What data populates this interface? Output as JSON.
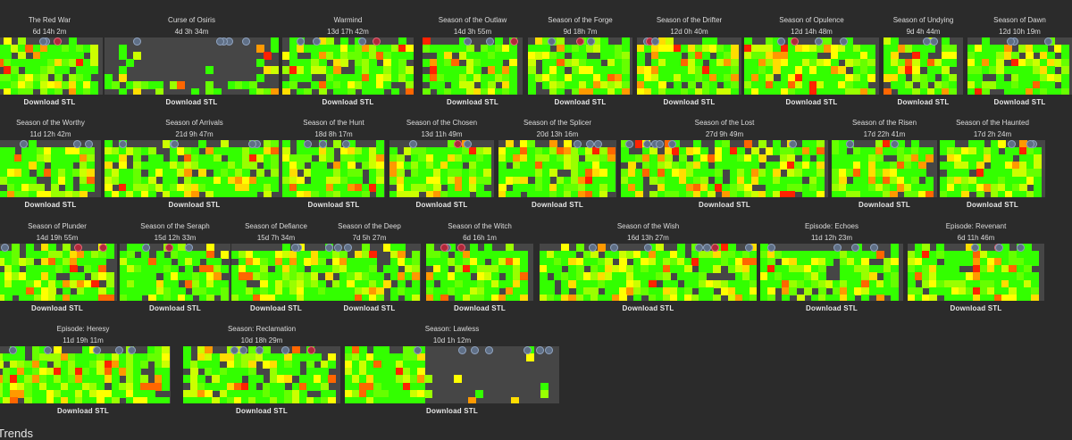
{
  "rows": [
    {
      "top": 18,
      "seasons": [
        {
          "title": "The Red War",
          "time": "6d 14h 2m",
          "download": "Download STL"
        },
        {
          "title": "Curse of Osiris",
          "time": "4d 3h 34m",
          "download": "Download STL"
        },
        {
          "title": "Warmind",
          "time": "13d 17h 42m",
          "download": "Download STL"
        },
        {
          "title": "Season of the Outlaw",
          "time": "14d 3h 55m",
          "download": "Download STL"
        },
        {
          "title": "Season of the Forge",
          "time": "9d 18h 7m",
          "download": "Download STL"
        },
        {
          "title": "Season of the Drifter",
          "time": "12d 0h 40m",
          "download": "Download STL"
        },
        {
          "title": "Season of Opulence",
          "time": "12d 14h 48m",
          "download": "Download STL"
        },
        {
          "title": "Season of Undying",
          "time": "9d 4h 44m",
          "download": "Download STL"
        },
        {
          "title": "Season of Dawn",
          "time": "12d 10h 19m",
          "download": "Download STL"
        }
      ]
    },
    {
      "top": 133,
      "seasons": [
        {
          "title": "Season of the Worthy",
          "time": "11d 12h 42m",
          "download": "Download STL"
        },
        {
          "title": "Season of Arrivals",
          "time": "21d 9h 47m",
          "download": "Download STL"
        },
        {
          "title": "Season of the Hunt",
          "time": "18d 8h 17m",
          "download": "Download STL"
        },
        {
          "title": "Season of the Chosen",
          "time": "13d 11h 49m",
          "download": "Download STL"
        },
        {
          "title": "Season of the Splicer",
          "time": "20d 13h 16m",
          "download": "Download STL"
        },
        {
          "title": "Season of the Lost",
          "time": "27d 9h 49m",
          "download": "Download STL"
        },
        {
          "title": "Season of the Risen",
          "time": "17d 22h 41m",
          "download": "Download STL"
        },
        {
          "title": "Season of the Haunted",
          "time": "17d 2h 24m",
          "download": "Download STL"
        }
      ]
    },
    {
      "top": 249,
      "seasons": [
        {
          "title": "Season of Plunder",
          "time": "14d 19h 55m",
          "download": "Download STL"
        },
        {
          "title": "Season of the Seraph",
          "time": "15d 12h 33m",
          "download": "Download STL"
        },
        {
          "title": "Season of Defiance",
          "time": "15d 7h 34m",
          "download": "Download STL"
        },
        {
          "title": "Season of the Deep",
          "time": "7d 5h 27m",
          "download": "Download STL"
        },
        {
          "title": "Season of the Witch",
          "time": "6d 16h 1m",
          "download": "Download STL"
        },
        {
          "title": "Season of the Wish",
          "time": "16d 13h 27m",
          "download": "Download STL"
        },
        {
          "title": "Episode: Echoes",
          "time": "11d 12h 23m",
          "download": "Download STL"
        },
        {
          "title": "Episode: Revenant",
          "time": "6d 11h 46m",
          "download": "Download STL"
        }
      ]
    },
    {
      "top": 364,
      "seasons": [
        {
          "title": "Episode: Heresy",
          "time": "11d 19h 11m",
          "download": "Download STL"
        },
        {
          "title": "Season: Reclamation",
          "time": "10d 18h 29m",
          "download": "Download STL"
        },
        {
          "title": "Season: Lawless",
          "time": "10d 1h 12m",
          "download": "Download STL"
        }
      ]
    }
  ],
  "footer": {
    "section_heading": "Trends"
  },
  "colors": {
    "background": "#2b2b2b",
    "empty": "#464646",
    "green": "#33ff00",
    "yellow": "#ffff00",
    "orange": "#ff9900",
    "red": "#ff2200"
  }
}
